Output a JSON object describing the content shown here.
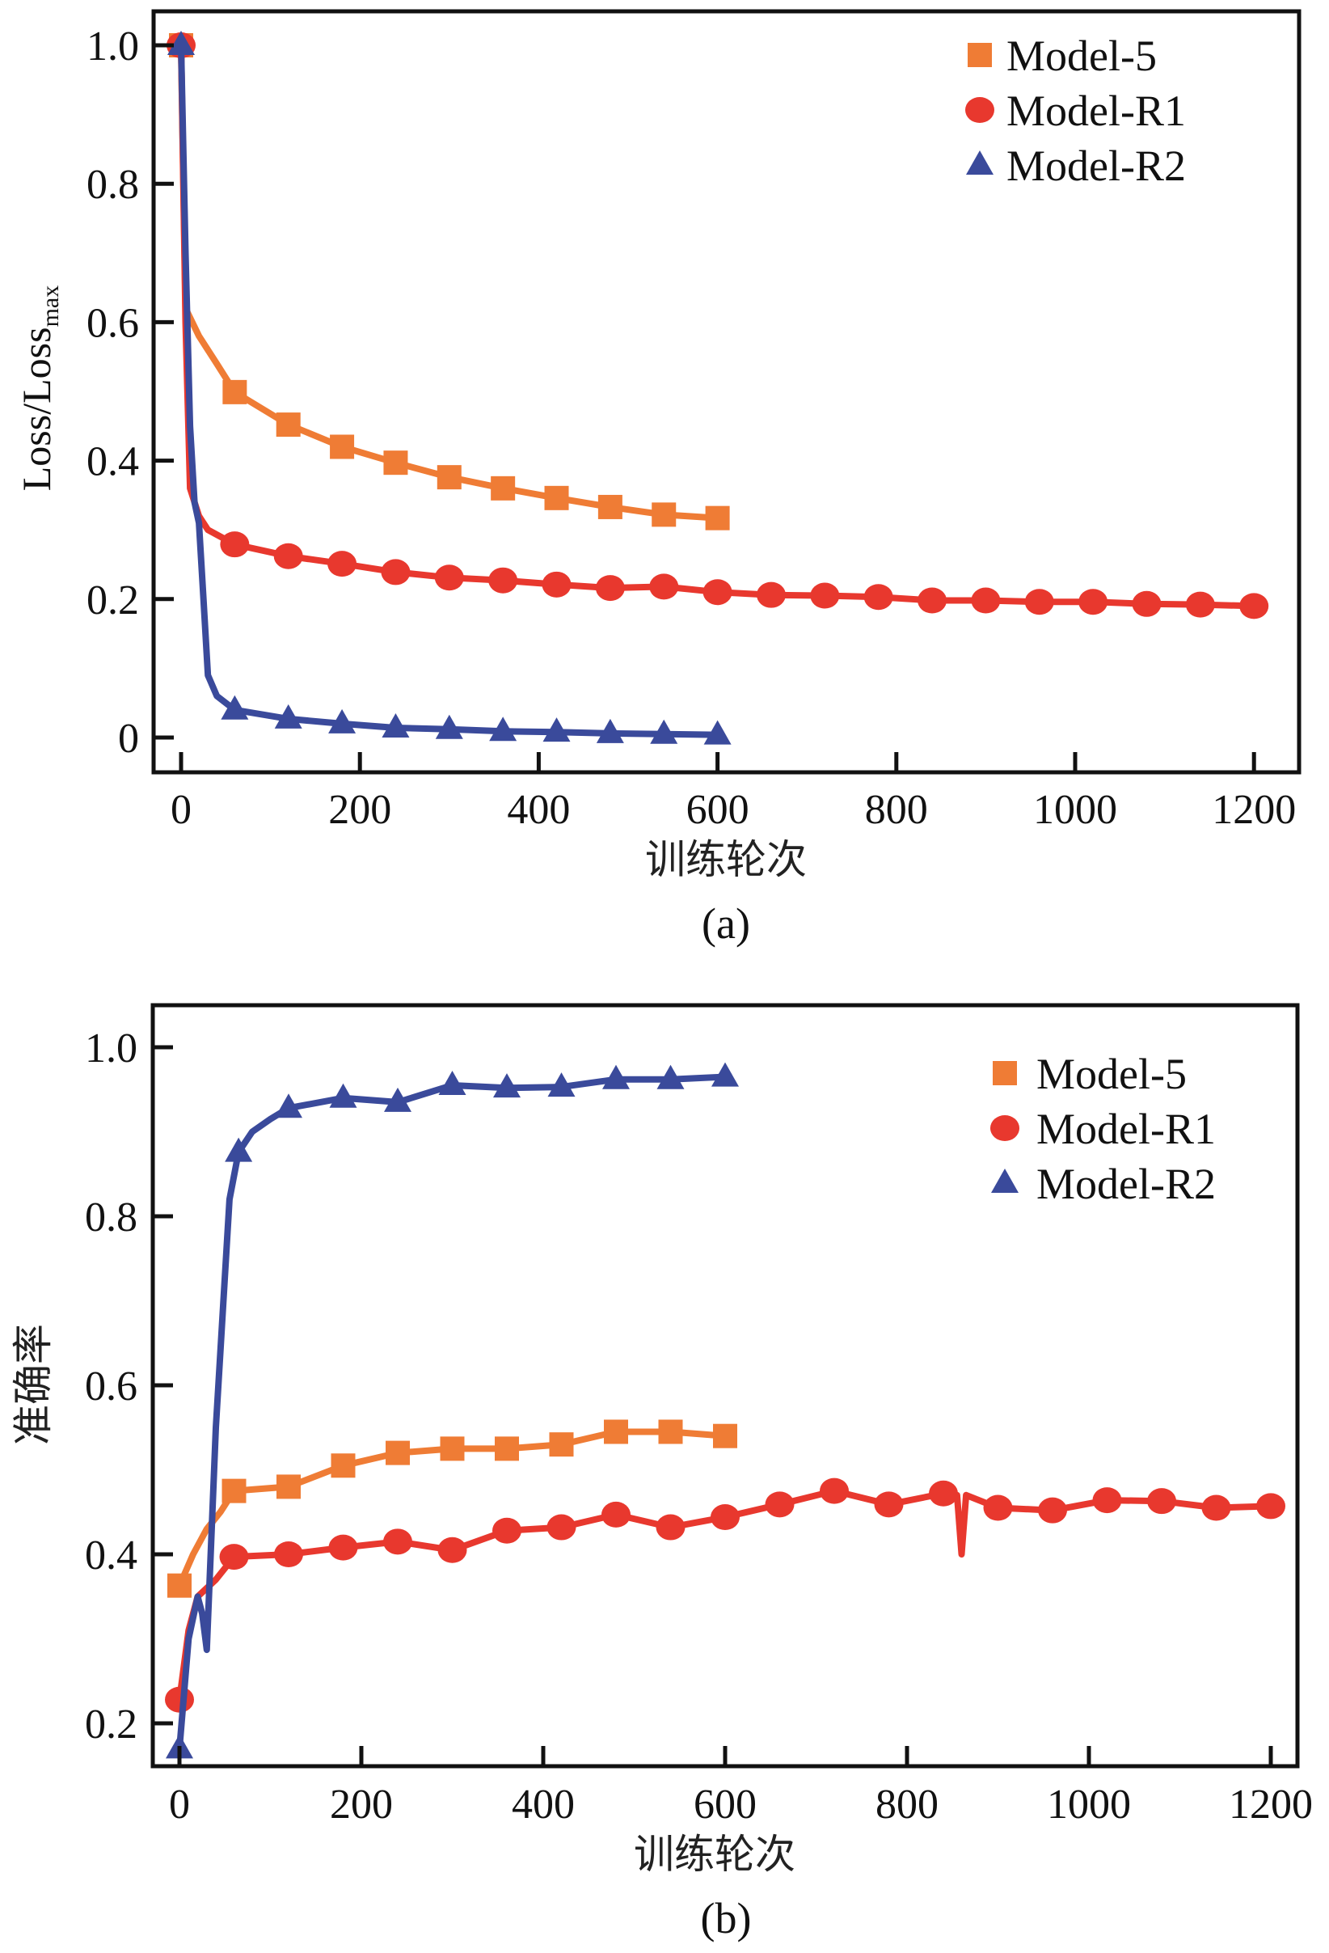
{
  "chart_data": [
    {
      "type": "line",
      "panel_label": "(a)",
      "title": "",
      "xlabel": "训练轮次",
      "ylabel_main": "Loss/Loss",
      "ylabel_sub": "max",
      "xlim": [
        -15,
        1230
      ],
      "ylim": [
        -0.05,
        1.05
      ],
      "xticks": [
        0,
        200,
        400,
        600,
        800,
        1000,
        1200
      ],
      "xtick_labels": [
        "0",
        "200",
        "400",
        "600",
        "800",
        "1000",
        "1200"
      ],
      "yticks": [
        0,
        0.2,
        0.4,
        0.6,
        0.8,
        1.0
      ],
      "ytick_labels": [
        "0",
        "0.2",
        "0.4",
        "0.6",
        "0.8",
        "1.0"
      ],
      "grid": false,
      "legend_position": "top-right",
      "series": [
        {
          "name": "Model-5",
          "color": "#EF7C35",
          "marker": "square",
          "x": [
            0,
            5,
            20,
            40,
            60,
            120,
            180,
            240,
            300,
            360,
            420,
            480,
            540,
            600
          ],
          "values": [
            1.0,
            0.62,
            0.58,
            0.54,
            0.499,
            0.452,
            0.42,
            0.397,
            0.376,
            0.36,
            0.346,
            0.333,
            0.322,
            0.317
          ],
          "marker_x": [
            0,
            60,
            120,
            180,
            240,
            300,
            360,
            420,
            480,
            540,
            600
          ]
        },
        {
          "name": "Model-R1",
          "color": "#E8382E",
          "marker": "circle",
          "x": [
            0,
            5,
            10,
            20,
            30,
            60,
            120,
            180,
            240,
            300,
            360,
            420,
            480,
            540,
            600,
            660,
            720,
            780,
            840,
            900,
            960,
            1020,
            1080,
            1140,
            1200
          ],
          "values": [
            1.0,
            0.6,
            0.36,
            0.32,
            0.3,
            0.279,
            0.262,
            0.251,
            0.239,
            0.231,
            0.227,
            0.221,
            0.216,
            0.218,
            0.21,
            0.206,
            0.205,
            0.203,
            0.198,
            0.198,
            0.196,
            0.196,
            0.193,
            0.192,
            0.19
          ],
          "marker_x": [
            0,
            60,
            120,
            180,
            240,
            300,
            360,
            420,
            480,
            540,
            600,
            660,
            720,
            780,
            840,
            900,
            960,
            1020,
            1080,
            1140,
            1200
          ]
        },
        {
          "name": "Model-R2",
          "color": "#3A4A9B",
          "marker": "triangle",
          "x": [
            0,
            5,
            10,
            15,
            20,
            25,
            30,
            40,
            60,
            120,
            180,
            240,
            300,
            360,
            420,
            480,
            540,
            600
          ],
          "values": [
            1.0,
            0.7,
            0.45,
            0.34,
            0.31,
            0.2,
            0.09,
            0.06,
            0.04,
            0.027,
            0.02,
            0.014,
            0.012,
            0.009,
            0.008,
            0.006,
            0.005,
            0.004
          ],
          "marker_x": [
            0,
            60,
            120,
            180,
            240,
            300,
            360,
            420,
            480,
            540,
            600
          ]
        }
      ]
    },
    {
      "type": "line",
      "panel_label": "(b)",
      "title": "",
      "xlabel": "训练轮次",
      "ylabel": "准确率",
      "xlim": [
        -15,
        1230
      ],
      "ylim": [
        0.15,
        1.05
      ],
      "xticks": [
        0,
        200,
        400,
        600,
        800,
        1000,
        1200
      ],
      "xtick_labels": [
        "0",
        "200",
        "400",
        "600",
        "800",
        "1000",
        "1200"
      ],
      "yticks": [
        0.2,
        0.4,
        0.6,
        0.8,
        1.0
      ],
      "ytick_labels": [
        "0.2",
        "0.4",
        "0.6",
        "0.8",
        "1.0"
      ],
      "grid": false,
      "legend_position": "top-right",
      "series": [
        {
          "name": "Model-5",
          "color": "#EF7C35",
          "marker": "square",
          "x": [
            0,
            15,
            30,
            45,
            60,
            120,
            180,
            240,
            300,
            360,
            420,
            480,
            540,
            600
          ],
          "values": [
            0.363,
            0.4,
            0.43,
            0.45,
            0.475,
            0.48,
            0.505,
            0.52,
            0.525,
            0.525,
            0.53,
            0.545,
            0.545,
            0.54
          ],
          "marker_x": [
            0,
            60,
            120,
            180,
            240,
            300,
            360,
            420,
            480,
            540,
            600
          ]
        },
        {
          "name": "Model-R1",
          "color": "#E8382E",
          "marker": "circle",
          "x": [
            0,
            10,
            20,
            40,
            60,
            120,
            180,
            240,
            300,
            360,
            420,
            480,
            540,
            600,
            660,
            720,
            780,
            840,
            855,
            860,
            865,
            900,
            960,
            1020,
            1080,
            1140,
            1200
          ],
          "values": [
            0.228,
            0.31,
            0.35,
            0.37,
            0.397,
            0.4,
            0.408,
            0.415,
            0.405,
            0.428,
            0.432,
            0.447,
            0.432,
            0.444,
            0.459,
            0.475,
            0.459,
            0.472,
            0.47,
            0.4,
            0.47,
            0.455,
            0.452,
            0.464,
            0.463,
            0.455,
            0.457
          ],
          "marker_x": [
            0,
            60,
            120,
            180,
            240,
            300,
            360,
            420,
            480,
            540,
            600,
            660,
            720,
            780,
            840,
            900,
            960,
            1020,
            1080,
            1140,
            1200
          ]
        },
        {
          "name": "Model-R2",
          "color": "#3A4A9B",
          "marker": "triangle",
          "x": [
            0,
            10,
            20,
            25,
            30,
            40,
            55,
            65,
            80,
            100,
            120,
            180,
            240,
            300,
            360,
            420,
            480,
            540,
            600
          ],
          "values": [
            0.17,
            0.3,
            0.35,
            0.33,
            0.287,
            0.55,
            0.82,
            0.876,
            0.9,
            0.915,
            0.928,
            0.94,
            0.935,
            0.955,
            0.952,
            0.953,
            0.962,
            0.962,
            0.965
          ],
          "marker_x": [
            0,
            65,
            120,
            180,
            240,
            300,
            360,
            420,
            480,
            540,
            600
          ]
        }
      ]
    }
  ]
}
